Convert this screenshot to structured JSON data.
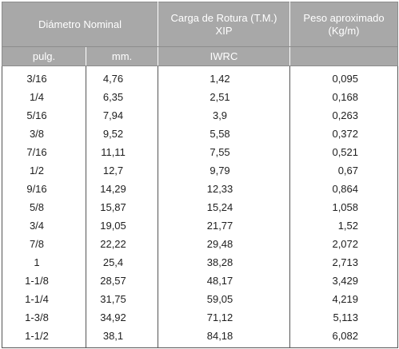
{
  "header": {
    "diametro_nominal": "Diámetro Nominal",
    "carga_line1": "Carga de Rotura (T.M.)",
    "carga_line2": "XIP",
    "peso_line1": "Peso aproximado",
    "peso_line2": "(Kg/m)",
    "pulg": "pulg.",
    "mm": "mm.",
    "iwrc": "IWRC"
  },
  "rows": [
    {
      "pulg": "3/16",
      "mm": "4,76",
      "carga": "1,42",
      "peso": "0,095"
    },
    {
      "pulg": "1/4",
      "mm": "6,35",
      "carga": "2,51",
      "peso": "0,168"
    },
    {
      "pulg": "5/16",
      "mm": "7,94",
      "carga": "3,9",
      "peso": "0,263"
    },
    {
      "pulg": "3/8",
      "mm": "9,52",
      "carga": "5,58",
      "peso": "0,372"
    },
    {
      "pulg": "7/16",
      "mm": "11,11",
      "carga": "7,55",
      "peso": "0,521"
    },
    {
      "pulg": "1/2",
      "mm": "12,7",
      "carga": "9,79",
      "peso": "0,67"
    },
    {
      "pulg": "9/16",
      "mm": "14,29",
      "carga": "12,33",
      "peso": "0,864"
    },
    {
      "pulg": "5/8",
      "mm": "15,87",
      "carga": "15,24",
      "peso": "1,058"
    },
    {
      "pulg": "3/4",
      "mm": "19,05",
      "carga": "21,77",
      "peso": "1,52"
    },
    {
      "pulg": "7/8",
      "mm": "22,22",
      "carga": "29,48",
      "peso": "2,072"
    },
    {
      "pulg": "1",
      "mm": "25,4",
      "carga": "38,28",
      "peso": "2,713"
    },
    {
      "pulg": "1-1/8",
      "mm": "28,57",
      "carga": "48,17",
      "peso": "3,429"
    },
    {
      "pulg": "1-1/4",
      "mm": "31,75",
      "carga": "59,05",
      "peso": "4,219"
    },
    {
      "pulg": "1-3/8",
      "mm": "34,92",
      "carga": "71,12",
      "peso": "5,113"
    },
    {
      "pulg": "1-1/2",
      "mm": "38,1",
      "carga": "84,18",
      "peso": "6,082"
    }
  ]
}
